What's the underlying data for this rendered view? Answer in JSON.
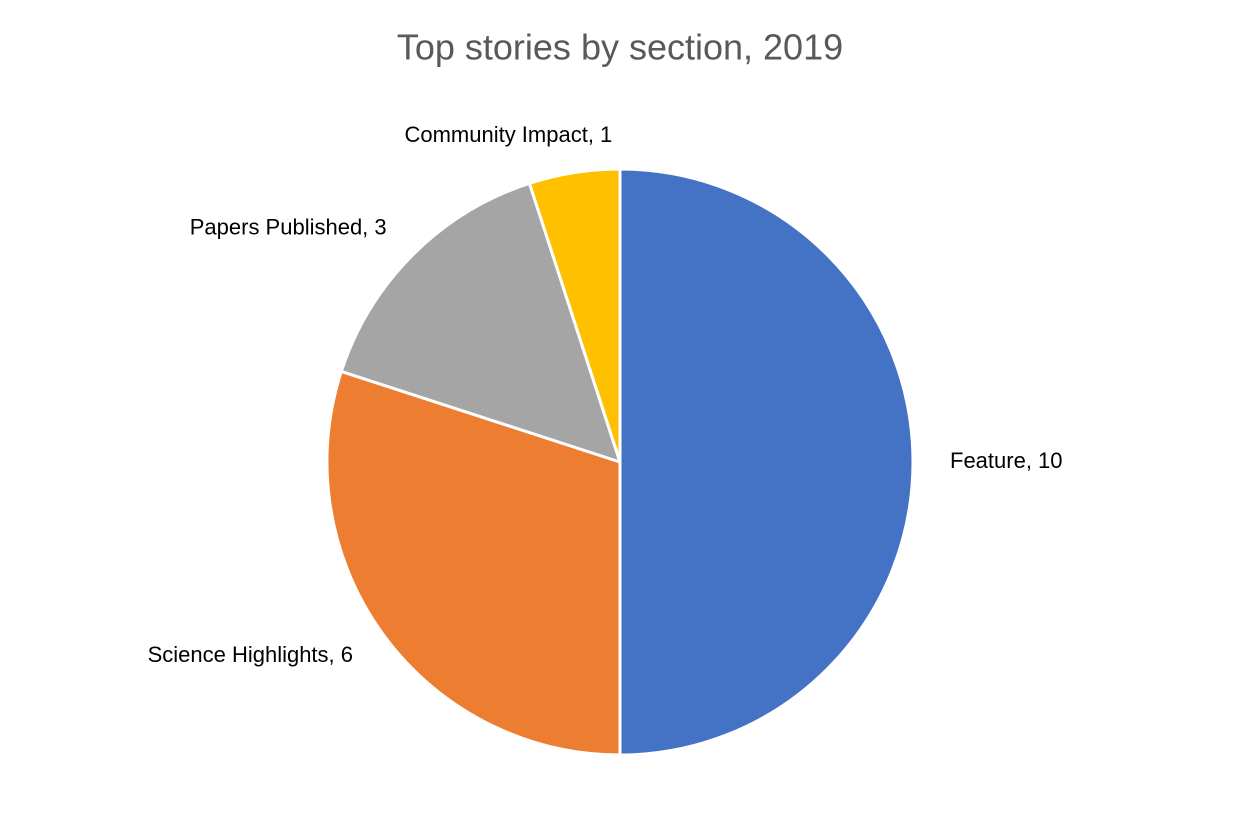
{
  "chart_data": {
    "type": "pie",
    "title": "Top stories by section, 2019",
    "labels": [
      "Feature, 10",
      "Science Highlights, 6",
      "Papers Published, 3",
      "Community Impact, 1"
    ],
    "values": [
      10,
      6,
      3,
      1
    ],
    "colors": [
      "#4472c4",
      "#ed7d31",
      "#a5a5a5",
      "#ffc000"
    ]
  }
}
